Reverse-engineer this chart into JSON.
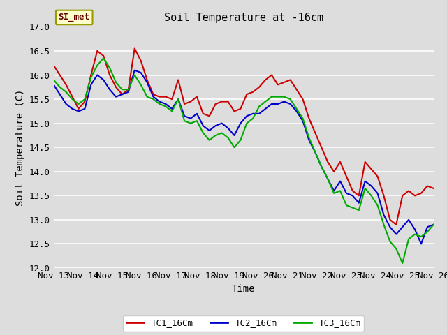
{
  "title": "Soil Temperature at -16cm",
  "xlabel": "Time",
  "ylabel": "Soil Temperature (C)",
  "ylim": [
    12.0,
    17.0
  ],
  "yticks": [
    12.0,
    12.5,
    13.0,
    13.5,
    14.0,
    14.5,
    15.0,
    15.5,
    16.0,
    16.5,
    17.0
  ],
  "xtick_labels": [
    "Nov 13",
    "Nov 14",
    "Nov 15",
    "Nov 16",
    "Nov 17",
    "Nov 18",
    "Nov 19",
    "Nov 20",
    "Nov 21",
    "Nov 22",
    "Nov 23",
    "Nov 24",
    "Nov 25",
    "Nov 26"
  ],
  "legend_label": "SI_met",
  "series_labels": [
    "TC1_16Cm",
    "TC2_16Cm",
    "TC3_16Cm"
  ],
  "series_colors": [
    "#cc0000",
    "#0000cc",
    "#00aa00"
  ],
  "background_color": "#dddddd",
  "plot_bg_color": "#dddddd",
  "grid_color": "#ffffff",
  "title_fontsize": 11,
  "axis_label_fontsize": 10,
  "tick_fontsize": 9,
  "line_width": 1.5,
  "tc1": [
    16.2,
    16.0,
    15.8,
    15.55,
    15.3,
    15.45,
    16.0,
    16.5,
    16.4,
    16.0,
    15.75,
    15.6,
    15.7,
    16.55,
    16.3,
    15.9,
    15.6,
    15.55,
    15.55,
    15.5,
    15.9,
    15.4,
    15.45,
    15.55,
    15.2,
    15.15,
    15.4,
    15.45,
    15.45,
    15.25,
    15.3,
    15.6,
    15.65,
    15.75,
    15.9,
    16.0,
    15.8,
    15.85,
    15.9,
    15.7,
    15.5,
    15.1,
    14.8,
    14.5,
    14.2,
    14.0,
    14.2,
    13.9,
    13.6,
    13.5,
    14.2,
    14.05,
    13.9,
    13.5,
    13.0,
    12.9,
    13.5,
    13.6,
    13.5,
    13.55,
    13.7,
    13.65
  ],
  "tc2": [
    15.8,
    15.6,
    15.4,
    15.3,
    15.25,
    15.3,
    15.8,
    16.0,
    15.9,
    15.7,
    15.55,
    15.6,
    15.65,
    16.1,
    16.05,
    15.85,
    15.55,
    15.45,
    15.4,
    15.3,
    15.5,
    15.15,
    15.1,
    15.2,
    14.95,
    14.85,
    14.95,
    15.0,
    14.9,
    14.75,
    15.0,
    15.15,
    15.2,
    15.2,
    15.3,
    15.4,
    15.4,
    15.45,
    15.4,
    15.25,
    15.05,
    14.65,
    14.4,
    14.1,
    13.85,
    13.6,
    13.8,
    13.55,
    13.5,
    13.35,
    13.8,
    13.7,
    13.55,
    13.1,
    12.85,
    12.7,
    12.85,
    13.0,
    12.8,
    12.5,
    12.85,
    12.9
  ],
  "tc3": [
    15.9,
    15.75,
    15.65,
    15.5,
    15.4,
    15.5,
    15.95,
    16.2,
    16.35,
    16.15,
    15.85,
    15.7,
    15.7,
    16.0,
    15.8,
    15.55,
    15.5,
    15.4,
    15.35,
    15.25,
    15.5,
    15.05,
    15.0,
    15.05,
    14.8,
    14.65,
    14.75,
    14.8,
    14.7,
    14.5,
    14.65,
    15.0,
    15.1,
    15.35,
    15.45,
    15.55,
    15.55,
    15.55,
    15.5,
    15.3,
    15.1,
    14.7,
    14.4,
    14.1,
    13.85,
    13.55,
    13.6,
    13.3,
    13.25,
    13.2,
    13.65,
    13.5,
    13.3,
    12.9,
    12.55,
    12.4,
    12.1,
    12.6,
    12.7,
    12.65,
    12.75,
    12.9
  ]
}
